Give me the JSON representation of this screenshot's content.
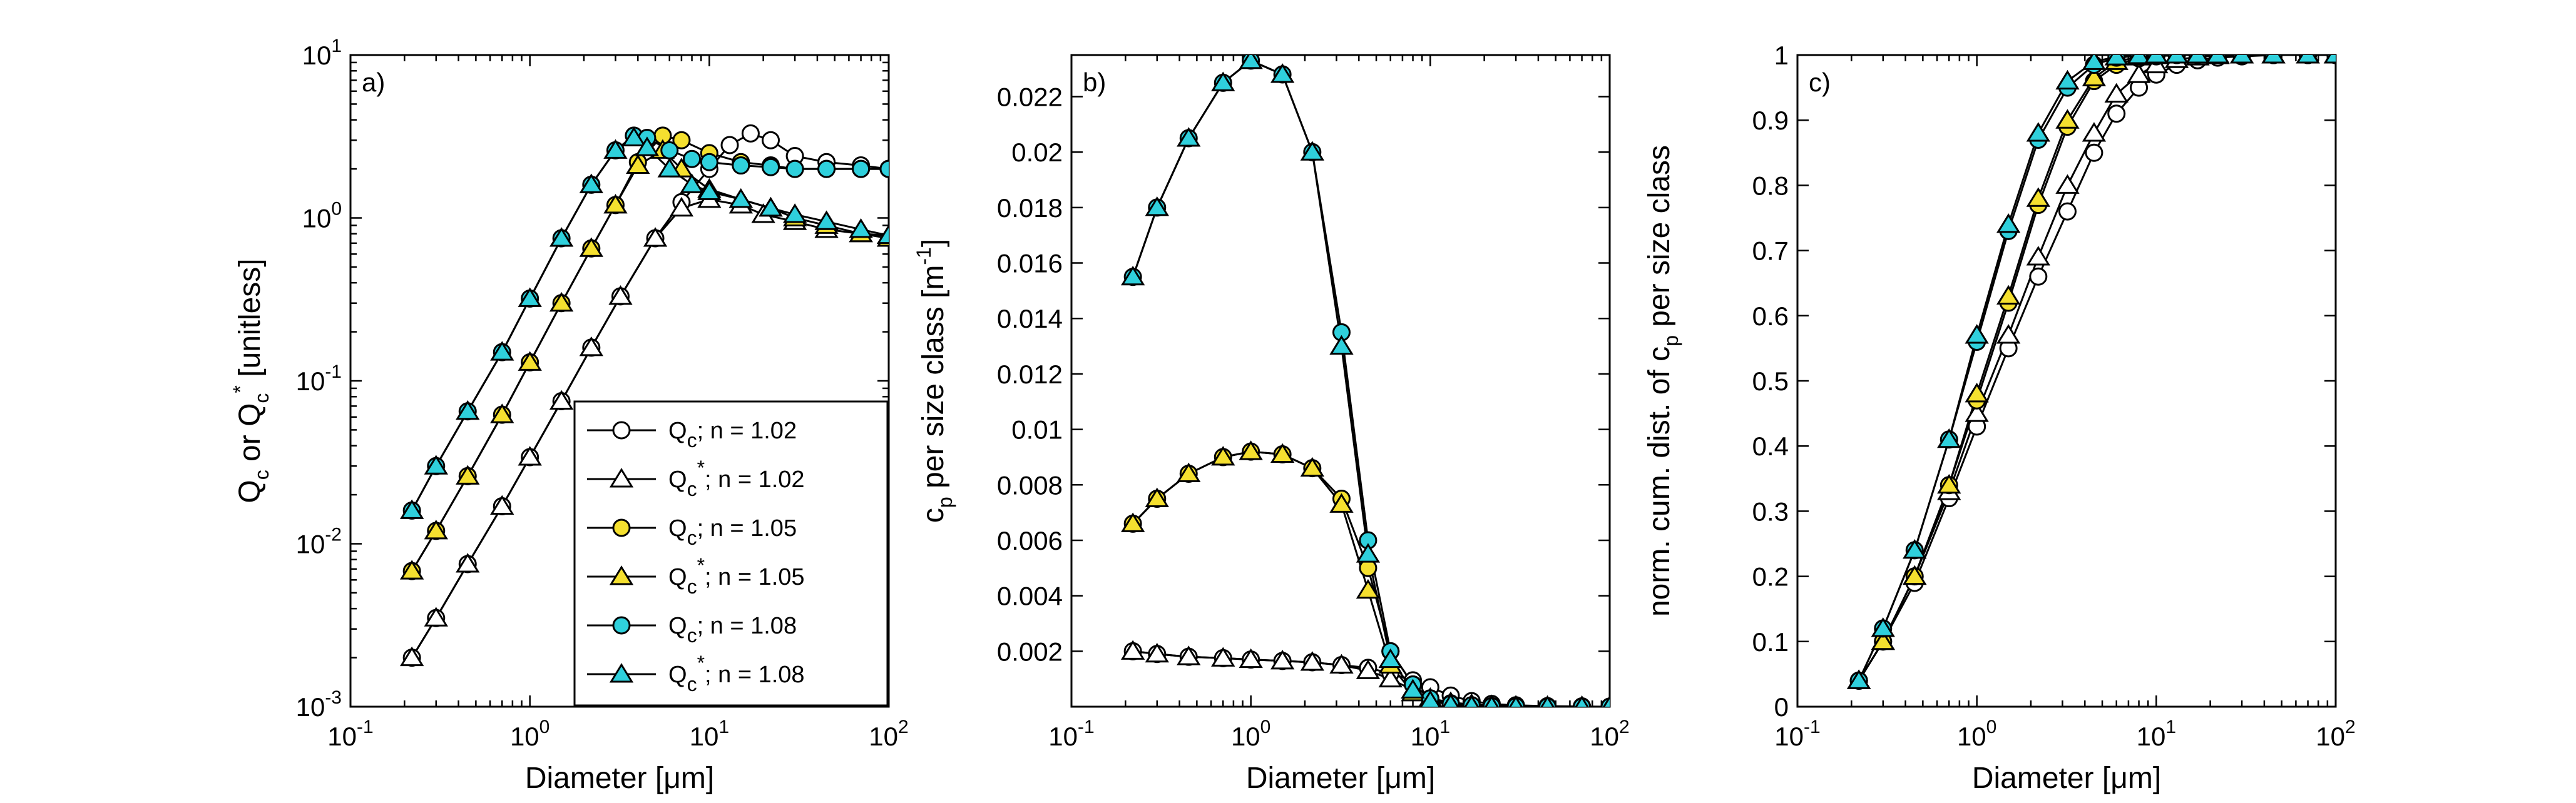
{
  "colors": {
    "open": "#ffffff",
    "yellow": "#f5e02f",
    "cyan": "#2fd0dc",
    "stroke": "#000000"
  },
  "chart_data": [
    {
      "type": "line",
      "panel": "a)",
      "xlabel": "Diameter [μm]",
      "ylabel": "Q_c or Q_c^* [unitless]",
      "xscale": "log",
      "yscale": "log",
      "xlim": [
        0.1,
        100
      ],
      "ylim": [
        0.001,
        10
      ],
      "xticks": [
        "10^-1",
        "10^0",
        "10^1",
        "10^2"
      ],
      "yticks": [
        "10^-3",
        "10^-2",
        "10^-1",
        "10^0",
        "10^1"
      ],
      "legend": [
        "Q_c; n = 1.02",
        "Q_c^*; n = 1.02",
        "Q_c; n = 1.05",
        "Q_c^*; n = 1.05",
        "Q_c; n = 1.08",
        "Q_c^*; n = 1.08"
      ],
      "legend_position": "lower-right",
      "series": [
        {
          "marker": "circle",
          "fill": "open",
          "x": [
            0.22,
            0.3,
            0.45,
            0.7,
            1.0,
            1.5,
            2.2,
            3.2,
            5,
            7,
            10,
            13,
            17,
            22,
            30,
            45,
            70,
            100
          ],
          "y": [
            0.002,
            0.0035,
            0.0075,
            0.017,
            0.034,
            0.075,
            0.16,
            0.33,
            0.75,
            1.25,
            2.0,
            2.8,
            3.3,
            3.0,
            2.4,
            2.2,
            2.1,
            2.0
          ]
        },
        {
          "marker": "triangle",
          "fill": "open",
          "x": [
            0.22,
            0.3,
            0.45,
            0.7,
            1.0,
            1.5,
            2.2,
            3.2,
            5,
            7,
            10,
            15,
            20,
            30,
            45,
            70,
            100
          ],
          "y": [
            0.002,
            0.0035,
            0.0075,
            0.017,
            0.034,
            0.075,
            0.16,
            0.33,
            0.75,
            1.15,
            1.3,
            1.2,
            1.05,
            0.95,
            0.85,
            0.8,
            0.78
          ]
        },
        {
          "marker": "circle",
          "fill": "yellow",
          "x": [
            0.22,
            0.3,
            0.45,
            0.7,
            1.0,
            1.5,
            2.2,
            3.0,
            4.0,
            5.5,
            7,
            10,
            15,
            22,
            30,
            45,
            70,
            100
          ],
          "y": [
            0.0068,
            0.012,
            0.026,
            0.062,
            0.13,
            0.3,
            0.65,
            1.2,
            2.2,
            3.2,
            3.0,
            2.5,
            2.2,
            2.1,
            2.0,
            2.0,
            2.0,
            2.0
          ]
        },
        {
          "marker": "triangle",
          "fill": "yellow",
          "x": [
            0.22,
            0.3,
            0.45,
            0.7,
            1.0,
            1.5,
            2.2,
            3.0,
            4.0,
            5.5,
            7,
            10,
            15,
            22,
            30,
            45,
            70,
            100
          ],
          "y": [
            0.0068,
            0.012,
            0.026,
            0.062,
            0.13,
            0.3,
            0.65,
            1.2,
            2.1,
            2.6,
            2.0,
            1.5,
            1.3,
            1.15,
            1.0,
            0.9,
            0.8,
            0.75
          ]
        },
        {
          "marker": "circle",
          "fill": "cyan",
          "x": [
            0.22,
            0.3,
            0.45,
            0.7,
            1.0,
            1.5,
            2.2,
            3.0,
            3.8,
            4.5,
            6,
            8,
            10,
            15,
            22,
            30,
            45,
            70,
            100
          ],
          "y": [
            0.016,
            0.03,
            0.065,
            0.15,
            0.32,
            0.75,
            1.6,
            2.6,
            3.2,
            3.1,
            2.6,
            2.3,
            2.2,
            2.1,
            2.05,
            2.0,
            2.0,
            2.0,
            2.0
          ]
        },
        {
          "marker": "triangle",
          "fill": "cyan",
          "x": [
            0.22,
            0.3,
            0.45,
            0.7,
            1.0,
            1.5,
            2.2,
            3.0,
            3.8,
            4.5,
            6,
            8,
            10,
            15,
            22,
            30,
            45,
            70,
            100
          ],
          "y": [
            0.016,
            0.03,
            0.065,
            0.15,
            0.32,
            0.75,
            1.6,
            2.6,
            3.1,
            2.7,
            2.0,
            1.6,
            1.45,
            1.3,
            1.15,
            1.05,
            0.95,
            0.85,
            0.78
          ]
        }
      ]
    },
    {
      "type": "line",
      "panel": "b)",
      "xlabel": "Diameter [μm]",
      "ylabel": "c_p per size class [m^-1]",
      "xscale": "log",
      "yscale": "linear",
      "xlim": [
        0.1,
        100
      ],
      "ylim": [
        0,
        0.0235
      ],
      "xticks": [
        "10^-1",
        "10^0",
        "10^1",
        "10^2"
      ],
      "yticks": [
        "0.002",
        "0.004",
        "0.006",
        "0.008",
        "0.01",
        "0.012",
        "0.014",
        "0.016",
        "0.018",
        "0.02",
        "0.022"
      ],
      "series": [
        {
          "marker": "circle",
          "fill": "open",
          "x": [
            0.22,
            0.3,
            0.45,
            0.7,
            1.0,
            1.5,
            2.2,
            3.2,
            4.5,
            6,
            8,
            10,
            13,
            17,
            22,
            30,
            45,
            70,
            100
          ],
          "y": [
            0.002,
            0.0019,
            0.0018,
            0.00175,
            0.0017,
            0.00165,
            0.0016,
            0.0015,
            0.0014,
            0.0012,
            0.00095,
            0.0007,
            0.0004,
            0.0002,
            0.0001,
            5e-05,
            2e-05,
            1e-05,
            0
          ]
        },
        {
          "marker": "triangle",
          "fill": "open",
          "x": [
            0.22,
            0.3,
            0.45,
            0.7,
            1.0,
            1.5,
            2.2,
            3.2,
            4.5,
            6,
            8,
            10,
            13,
            17,
            22,
            30,
            45,
            70,
            100
          ],
          "y": [
            0.002,
            0.0019,
            0.0018,
            0.00175,
            0.0017,
            0.00165,
            0.0016,
            0.0015,
            0.0013,
            0.001,
            0.0006,
            0.0003,
            0.00015,
            8e-05,
            4e-05,
            2e-05,
            1e-05,
            0,
            0
          ]
        },
        {
          "marker": "circle",
          "fill": "yellow",
          "x": [
            0.22,
            0.3,
            0.45,
            0.7,
            1.0,
            1.5,
            2.2,
            3.2,
            4.5,
            6,
            8,
            10,
            13,
            17,
            22,
            30,
            45,
            70,
            100
          ],
          "y": [
            0.0066,
            0.0075,
            0.0084,
            0.009,
            0.0092,
            0.0091,
            0.0086,
            0.0075,
            0.005,
            0.002,
            0.0008,
            0.0003,
            0.00012,
            5e-05,
            2e-05,
            1e-05,
            0,
            0,
            0
          ]
        },
        {
          "marker": "triangle",
          "fill": "yellow",
          "x": [
            0.22,
            0.3,
            0.45,
            0.7,
            1.0,
            1.5,
            2.2,
            3.2,
            4.5,
            6,
            8,
            10,
            13,
            17,
            22,
            30,
            45,
            70,
            100
          ],
          "y": [
            0.0066,
            0.0075,
            0.0084,
            0.009,
            0.0092,
            0.0091,
            0.0086,
            0.0073,
            0.0042,
            0.0015,
            0.0005,
            0.0002,
            8e-05,
            3e-05,
            1e-05,
            0,
            0,
            0,
            0
          ]
        },
        {
          "marker": "circle",
          "fill": "cyan",
          "x": [
            0.22,
            0.3,
            0.45,
            0.7,
            1.0,
            1.5,
            2.2,
            3.2,
            4.5,
            6,
            8,
            10,
            13,
            17,
            22,
            30,
            45,
            70,
            100
          ],
          "y": [
            0.0155,
            0.018,
            0.0205,
            0.0225,
            0.0233,
            0.0228,
            0.02,
            0.0135,
            0.006,
            0.002,
            0.0008,
            0.0003,
            0.0001,
            5e-05,
            2e-05,
            1e-05,
            0,
            0,
            0
          ]
        },
        {
          "marker": "triangle",
          "fill": "cyan",
          "x": [
            0.22,
            0.3,
            0.45,
            0.7,
            1.0,
            1.5,
            2.2,
            3.2,
            4.5,
            6,
            8,
            10,
            13,
            17,
            22,
            30,
            45,
            70,
            100
          ],
          "y": [
            0.0155,
            0.018,
            0.0205,
            0.0225,
            0.0233,
            0.0228,
            0.02,
            0.013,
            0.0055,
            0.0017,
            0.0006,
            0.0002,
            8e-05,
            3e-05,
            1e-05,
            0,
            0,
            0,
            0
          ]
        }
      ]
    },
    {
      "type": "line",
      "panel": "c)",
      "xlabel": "Diameter [μm]",
      "ylabel": "norm. cum. dist. of c_p per size class",
      "xscale": "log",
      "yscale": "linear",
      "xlim": [
        0.1,
        100
      ],
      "ylim": [
        0,
        1
      ],
      "xticks": [
        "10^-1",
        "10^0",
        "10^1",
        "10^2"
      ],
      "yticks": [
        "0",
        "0.1",
        "0.2",
        "0.3",
        "0.4",
        "0.5",
        "0.6",
        "0.7",
        "0.8",
        "0.9",
        "1"
      ],
      "series": [
        {
          "marker": "circle",
          "fill": "open",
          "x": [
            0.22,
            0.3,
            0.45,
            0.7,
            1.0,
            1.5,
            2.2,
            3.2,
            4.5,
            6,
            8,
            10,
            13,
            17,
            22,
            30,
            45,
            70,
            100
          ],
          "y": [
            0.04,
            0.1,
            0.19,
            0.32,
            0.43,
            0.55,
            0.66,
            0.76,
            0.85,
            0.91,
            0.95,
            0.97,
            0.985,
            0.992,
            0.996,
            0.998,
            1.0,
            1.0,
            1.0
          ]
        },
        {
          "marker": "triangle",
          "fill": "open",
          "x": [
            0.22,
            0.3,
            0.45,
            0.7,
            1.0,
            1.5,
            2.2,
            3.2,
            4.5,
            6,
            8,
            10,
            13,
            17,
            22,
            30,
            45,
            70,
            100
          ],
          "y": [
            0.04,
            0.1,
            0.2,
            0.33,
            0.45,
            0.57,
            0.69,
            0.8,
            0.88,
            0.94,
            0.97,
            0.985,
            0.993,
            0.997,
            0.999,
            1.0,
            1.0,
            1.0,
            1.0
          ]
        },
        {
          "marker": "circle",
          "fill": "yellow",
          "x": [
            0.22,
            0.3,
            0.45,
            0.7,
            1.0,
            1.5,
            2.2,
            3.2,
            4.5,
            6,
            8,
            10,
            13,
            17,
            22,
            30,
            45,
            70,
            100
          ],
          "y": [
            0.04,
            0.1,
            0.2,
            0.34,
            0.47,
            0.62,
            0.77,
            0.89,
            0.96,
            0.985,
            0.995,
            0.998,
            1.0,
            1.0,
            1.0,
            1.0,
            1.0,
            1.0,
            1.0
          ]
        },
        {
          "marker": "triangle",
          "fill": "yellow",
          "x": [
            0.22,
            0.3,
            0.45,
            0.7,
            1.0,
            1.5,
            2.2,
            3.2,
            4.5,
            6,
            8,
            10,
            13,
            17,
            22,
            30,
            45,
            70,
            100
          ],
          "y": [
            0.04,
            0.1,
            0.2,
            0.34,
            0.48,
            0.63,
            0.78,
            0.9,
            0.965,
            0.99,
            0.997,
            0.999,
            1.0,
            1.0,
            1.0,
            1.0,
            1.0,
            1.0,
            1.0
          ]
        },
        {
          "marker": "circle",
          "fill": "cyan",
          "x": [
            0.22,
            0.3,
            0.45,
            0.7,
            1.0,
            1.5,
            2.2,
            3.2,
            4.5,
            6,
            8,
            10,
            13,
            17,
            22,
            30,
            45,
            70,
            100
          ],
          "y": [
            0.04,
            0.12,
            0.24,
            0.41,
            0.56,
            0.73,
            0.87,
            0.95,
            0.985,
            0.996,
            0.999,
            1.0,
            1.0,
            1.0,
            1.0,
            1.0,
            1.0,
            1.0,
            1.0
          ]
        },
        {
          "marker": "triangle",
          "fill": "cyan",
          "x": [
            0.22,
            0.3,
            0.45,
            0.7,
            1.0,
            1.5,
            2.2,
            3.2,
            4.5,
            6,
            8,
            10,
            13,
            17,
            22,
            30,
            45,
            70,
            100
          ],
          "y": [
            0.04,
            0.12,
            0.24,
            0.41,
            0.57,
            0.74,
            0.88,
            0.96,
            0.99,
            0.997,
            0.999,
            1.0,
            1.0,
            1.0,
            1.0,
            1.0,
            1.0,
            1.0,
            1.0
          ]
        }
      ]
    }
  ]
}
